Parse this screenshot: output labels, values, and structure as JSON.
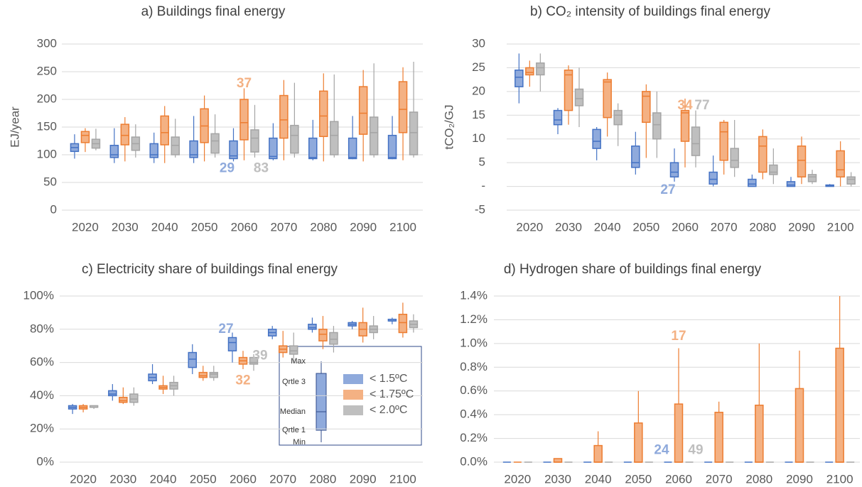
{
  "chart_data": [
    {
      "type": "box",
      "title": "a) Buildings final energy",
      "y_label": "EJ/year",
      "categories": [
        "2020",
        "2030",
        "2040",
        "2050",
        "2060",
        "2070",
        "2080",
        "2090",
        "2100"
      ],
      "ylim": [
        0,
        300
      ],
      "yticks": [
        0,
        50,
        100,
        150,
        200,
        250,
        300
      ],
      "grid": true,
      "series": [
        {
          "color": "#4472c4",
          "fill": "#8faadc",
          "min": [
            93,
            85,
            85,
            85,
            88,
            90,
            90,
            92,
            92
          ],
          "q1": [
            106,
            95,
            95,
            95,
            93,
            93,
            93,
            93,
            93
          ],
          "median": [
            113,
            100,
            100,
            100,
            98,
            97,
            95,
            95,
            95
          ],
          "q3": [
            120,
            117,
            120,
            125,
            125,
            130,
            130,
            130,
            135
          ],
          "max": [
            137,
            148,
            140,
            170,
            148,
            157,
            163,
            170,
            170
          ]
        },
        {
          "color": "#ed7d31",
          "fill": "#f4b183",
          "min": [
            105,
            88,
            85,
            88,
            90,
            90,
            88,
            88,
            90
          ],
          "q1": [
            122,
            118,
            118,
            122,
            127,
            130,
            133,
            137,
            140
          ],
          "median": [
            135,
            135,
            140,
            152,
            158,
            163,
            170,
            175,
            182
          ],
          "q3": [
            142,
            155,
            170,
            183,
            200,
            207,
            215,
            223,
            232
          ],
          "max": [
            148,
            168,
            188,
            207,
            220,
            235,
            247,
            253,
            258
          ]
        },
        {
          "color": "#a5a5a5",
          "fill": "#bfbfbf",
          "min": [
            108,
            95,
            95,
            95,
            95,
            95,
            95,
            95,
            95
          ],
          "q1": [
            112,
            108,
            100,
            103,
            105,
            103,
            100,
            100,
            100
          ],
          "median": [
            120,
            120,
            117,
            125,
            130,
            135,
            135,
            140,
            140
          ],
          "q3": [
            128,
            132,
            132,
            138,
            145,
            153,
            160,
            168,
            177
          ],
          "max": [
            147,
            155,
            165,
            173,
            190,
            230,
            245,
            265,
            268
          ]
        }
      ],
      "annotations": [
        {
          "text": "37",
          "x": "2060",
          "y": 228,
          "color": "#f4b183"
        },
        {
          "text": "29",
          "x": "2060",
          "y": 75,
          "color": "#8faadc"
        },
        {
          "text": "83",
          "x": "2060",
          "y": 75,
          "color": "#bfbfbf"
        }
      ]
    },
    {
      "type": "box",
      "title": "b) CO₂ intensity of buildings final energy",
      "y_label": "tCO₂/GJ",
      "categories": [
        "2020",
        "2030",
        "2040",
        "2050",
        "2060",
        "2070",
        "2080",
        "2090",
        "2100"
      ],
      "ylim": [
        -5,
        30
      ],
      "yticks": [
        -5,
        {
          "value": 0,
          "label": "-"
        },
        5,
        10,
        15,
        20,
        25,
        30
      ],
      "grid": true,
      "series": [
        {
          "color": "#4472c4",
          "fill": "#8faadc",
          "min": [
            17.5,
            11,
            5.5,
            2.5,
            1,
            0,
            0,
            0,
            0
          ],
          "q1": [
            21,
            13,
            8,
            4,
            2,
            0.5,
            0,
            0,
            0
          ],
          "median": [
            23,
            14,
            9.5,
            5,
            3,
            1.5,
            0.5,
            0.3,
            0.1
          ],
          "q3": [
            24.5,
            16,
            12,
            8.5,
            5,
            3,
            1.5,
            1,
            0.3
          ],
          "max": [
            28,
            16.5,
            12.5,
            11.5,
            8,
            6.5,
            2.5,
            2,
            0.5
          ]
        },
        {
          "color": "#ed7d31",
          "fill": "#f4b183",
          "min": [
            21,
            13,
            10.5,
            6,
            4,
            2.5,
            1.5,
            0.5,
            0
          ],
          "q1": [
            23.5,
            16,
            14.5,
            13.5,
            9.5,
            5.5,
            3,
            2,
            2
          ],
          "median": [
            24,
            23.5,
            22,
            19,
            15.5,
            11.5,
            8.5,
            5.5,
            3.5
          ],
          "q3": [
            25,
            24.5,
            22.5,
            20,
            16,
            13.5,
            10.5,
            8.5,
            7.5
          ],
          "max": [
            26.5,
            25.5,
            24,
            21.5,
            18.5,
            14,
            12,
            10.5,
            9.5
          ]
        },
        {
          "color": "#a5a5a5",
          "fill": "#bfbfbf",
          "min": [
            20,
            12.5,
            8.5,
            6,
            4,
            2,
            0.5,
            0.5,
            0
          ],
          "q1": [
            23.5,
            17,
            13,
            10,
            6.5,
            4,
            2.5,
            1,
            0.5
          ],
          "median": [
            25,
            18.5,
            15,
            13,
            9,
            5.5,
            3,
            2,
            1.5
          ],
          "q3": [
            26,
            20.5,
            16,
            15.5,
            12.5,
            8,
            4.5,
            2.5,
            2
          ],
          "max": [
            28,
            25,
            17.5,
            20,
            16,
            14,
            8,
            3.5,
            3
          ]
        }
      ],
      "annotations": [
        {
          "text": "34",
          "x": "2060",
          "y": 17,
          "color": "#f4b183"
        },
        {
          "text": "77",
          "x": "2060",
          "y": 17,
          "color": "#bfbfbf"
        },
        {
          "text": "27",
          "x": "2060",
          "y": -0.8,
          "color": "#8faadc"
        }
      ]
    },
    {
      "type": "box",
      "title": "c) Electricity share of buildings final energy",
      "categories": [
        "2020",
        "2030",
        "2040",
        "2050",
        "2060",
        "2070",
        "2080",
        "2090",
        "2100"
      ],
      "ylim": [
        0,
        100
      ],
      "yticks": [
        {
          "value": 0,
          "label": "0%"
        },
        {
          "value": 20,
          "label": "20%"
        },
        {
          "value": 40,
          "label": "40%"
        },
        {
          "value": 60,
          "label": "60%"
        },
        {
          "value": 80,
          "label": "80%"
        },
        {
          "value": 100,
          "label": "100%"
        }
      ],
      "grid": true,
      "series": [
        {
          "name": "< 1.5ºC",
          "color": "#4472c4",
          "fill": "#8faadc",
          "min": [
            29,
            37,
            47,
            53,
            60,
            74,
            78,
            80,
            83
          ],
          "q1": [
            32,
            40,
            49,
            57,
            67,
            76,
            80,
            82,
            85
          ],
          "median": [
            33,
            41,
            51,
            62,
            72,
            78,
            81,
            83,
            85
          ],
          "q3": [
            34,
            43,
            53,
            66,
            75,
            80,
            83,
            84,
            86
          ],
          "max": [
            35,
            47,
            59,
            71,
            78,
            82,
            87,
            85,
            87
          ]
        },
        {
          "name": "< 1.75ºC",
          "color": "#ed7d31",
          "fill": "#f4b183",
          "min": [
            30,
            35,
            41,
            49,
            56,
            63,
            68,
            72,
            75
          ],
          "q1": [
            32,
            36,
            44,
            51,
            59,
            66,
            73,
            76,
            78
          ],
          "median": [
            33,
            37,
            45,
            52,
            61,
            68,
            77,
            80,
            84
          ],
          "q3": [
            34,
            39,
            46,
            54,
            63,
            70,
            80,
            84,
            89
          ],
          "max": [
            35,
            45,
            52,
            58,
            67,
            79,
            88,
            93,
            96
          ]
        },
        {
          "name": "< 2.0ºC",
          "color": "#a5a5a5",
          "fill": "#bfbfbf",
          "min": [
            32,
            34,
            40,
            49,
            55,
            60,
            66,
            74,
            78
          ],
          "q1": [
            33,
            36,
            44,
            51,
            59,
            65,
            71,
            78,
            81
          ],
          "median": [
            33,
            38,
            46,
            53,
            60,
            67,
            74,
            80,
            83
          ],
          "q3": [
            34,
            41,
            48,
            54,
            63,
            70,
            78,
            82,
            85
          ],
          "max": [
            34,
            45,
            52,
            58,
            65,
            78,
            82,
            88,
            89
          ]
        }
      ],
      "legend_box_labels": [
        "Max",
        "Qrtle 3",
        "Median",
        "Qrtle 1",
        "Min"
      ],
      "annotations": [
        {
          "text": "27",
          "x": "2060",
          "y": 80,
          "color": "#8faadc"
        },
        {
          "text": "39",
          "x": "2060",
          "y": 64,
          "color": "#bfbfbf"
        },
        {
          "text": "32",
          "x": "2060",
          "y": 49,
          "color": "#f4b183"
        }
      ]
    },
    {
      "type": "box",
      "title": "d) Hydrogen share of buildings final energy",
      "categories": [
        "2020",
        "2030",
        "2040",
        "2050",
        "2060",
        "2070",
        "2080",
        "2090",
        "2100"
      ],
      "ylim": [
        0,
        1.4
      ],
      "yticks": [
        {
          "value": 0,
          "label": "0.0%"
        },
        {
          "value": 0.2,
          "label": "0.2%"
        },
        {
          "value": 0.4,
          "label": "0.4%"
        },
        {
          "value": 0.6,
          "label": "0.6%"
        },
        {
          "value": 0.8,
          "label": "0.8%"
        },
        {
          "value": 1.0,
          "label": "1.0%"
        },
        {
          "value": 1.2,
          "label": "1.2%"
        },
        {
          "value": 1.4,
          "label": "1.4%"
        }
      ],
      "grid": true,
      "series": [
        {
          "color": "#4472c4",
          "fill": "#8faadc",
          "min": [
            0,
            0,
            0,
            0,
            0,
            0,
            0,
            0,
            0
          ],
          "q1": [
            0,
            0,
            0,
            0,
            0,
            0,
            0,
            0,
            0
          ],
          "median": [
            0,
            0,
            0,
            0,
            0,
            0,
            0,
            0,
            0
          ],
          "q3": [
            0,
            0,
            0,
            0,
            0,
            0,
            0,
            0,
            0
          ],
          "max": [
            0,
            0,
            0,
            0,
            0,
            0,
            0,
            0,
            0
          ]
        },
        {
          "color": "#ed7d31",
          "fill": "#f4b183",
          "min": [
            0,
            0,
            0,
            0,
            0,
            0,
            0,
            0,
            0
          ],
          "q1": [
            0,
            0,
            0,
            0,
            0,
            0,
            0,
            0,
            0
          ],
          "median": [
            0,
            0,
            0,
            0,
            0,
            0,
            0,
            0,
            0
          ],
          "q3": [
            0,
            0.03,
            0.14,
            0.33,
            0.49,
            0.42,
            0.48,
            0.62,
            0.96
          ],
          "max": [
            0,
            0.03,
            0.26,
            0.6,
            0.96,
            0.51,
            1.0,
            0.94,
            1.4
          ]
        },
        {
          "color": "#a5a5a5",
          "fill": "#bfbfbf",
          "min": [
            0,
            0,
            0,
            0,
            0,
            0,
            0,
            0,
            0
          ],
          "q1": [
            0,
            0,
            0,
            0,
            0,
            0,
            0,
            0,
            0
          ],
          "median": [
            0,
            0,
            0,
            0,
            0,
            0,
            0,
            0,
            0
          ],
          "q3": [
            0,
            0,
            0,
            0,
            0,
            0,
            0,
            0,
            0
          ],
          "max": [
            0,
            0,
            0,
            0,
            0,
            0,
            0,
            0,
            0
          ]
        }
      ],
      "annotations": [
        {
          "text": "17",
          "x": "2060",
          "y": 1.06,
          "color": "#f4b183"
        },
        {
          "text": "24",
          "x": "2060",
          "y": 0.1,
          "color": "#8faadc"
        },
        {
          "text": "49",
          "x": "2060",
          "y": 0.1,
          "color": "#bfbfbf"
        }
      ]
    }
  ]
}
